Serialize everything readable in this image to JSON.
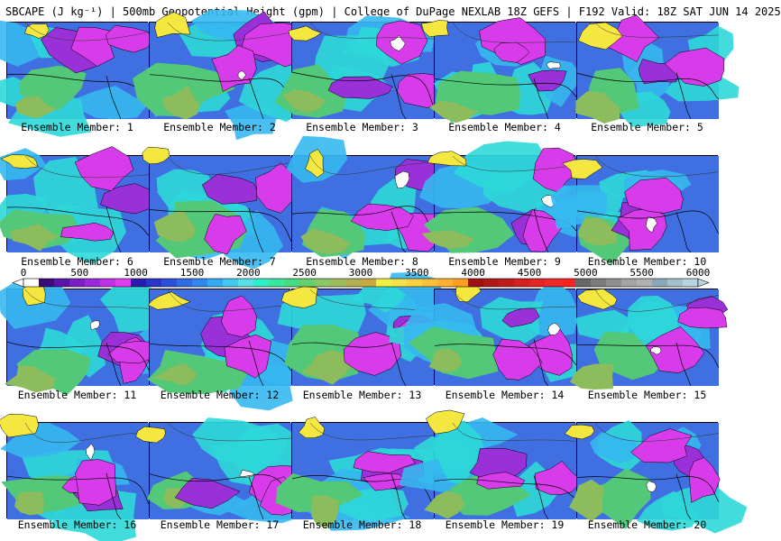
{
  "header": {
    "title": "SBCAPE (J kg⁻¹) | 500mb Geopotential Height (gpm) | College of DuPage NEXLAB 18Z GEFS | F192 Valid: 18Z SAT JUN 14 2025"
  },
  "panels": [
    {
      "caption": "Ensemble Member: 1"
    },
    {
      "caption": "Ensemble Member: 2"
    },
    {
      "caption": "Ensemble Member: 3"
    },
    {
      "caption": "Ensemble Member: 4"
    },
    {
      "caption": "Ensemble Member: 5"
    },
    {
      "caption": "Ensemble Member: 6"
    },
    {
      "caption": "Ensemble Member: 7"
    },
    {
      "caption": "Ensemble Member: 8"
    },
    {
      "caption": "Ensemble Member: 9"
    },
    {
      "caption": "Ensemble Member: 10"
    },
    {
      "caption": "Ensemble Member: 11"
    },
    {
      "caption": "Ensemble Member: 12"
    },
    {
      "caption": "Ensemble Member: 13"
    },
    {
      "caption": "Ensemble Member: 14"
    },
    {
      "caption": "Ensemble Member: 15"
    },
    {
      "caption": "Ensemble Member: 16"
    },
    {
      "caption": "Ensemble Member: 17"
    },
    {
      "caption": "Ensemble Member: 18"
    },
    {
      "caption": "Ensemble Member: 19"
    },
    {
      "caption": "Ensemble Member: 20"
    }
  ],
  "colorbar": {
    "tick_labels": [
      "0",
      "500",
      "1000",
      "1500",
      "2000",
      "2500",
      "3000",
      "3500",
      "4000",
      "4500",
      "5000",
      "5500",
      "6000"
    ],
    "colors": [
      "#ffffff",
      "#3a0a7a",
      "#5a14a8",
      "#7a1ec8",
      "#9c28dc",
      "#c030e4",
      "#e03cf0",
      "#2a1ab0",
      "#2a34c8",
      "#2c50dc",
      "#2e6ce6",
      "#3088ee",
      "#34a8f0",
      "#40c8f0",
      "#58e0e8",
      "#2ef0c8",
      "#36e8a0",
      "#44dc80",
      "#66d070",
      "#88c868",
      "#9cbc5c",
      "#b0b050",
      "#c8a840",
      "#f0f040",
      "#f8e048",
      "#ffd040",
      "#ffc038",
      "#ffb030",
      "#ffa020",
      "#a01010",
      "#b01818",
      "#c01c1c",
      "#d42020",
      "#e42424",
      "#f02828",
      "#ff2020",
      "#686868",
      "#7c7c7c",
      "#909090",
      "#a4a4a4",
      "#b0b0b0",
      "#8aa8b8",
      "#a0c0cc",
      "#b8d4dc"
    ]
  }
}
